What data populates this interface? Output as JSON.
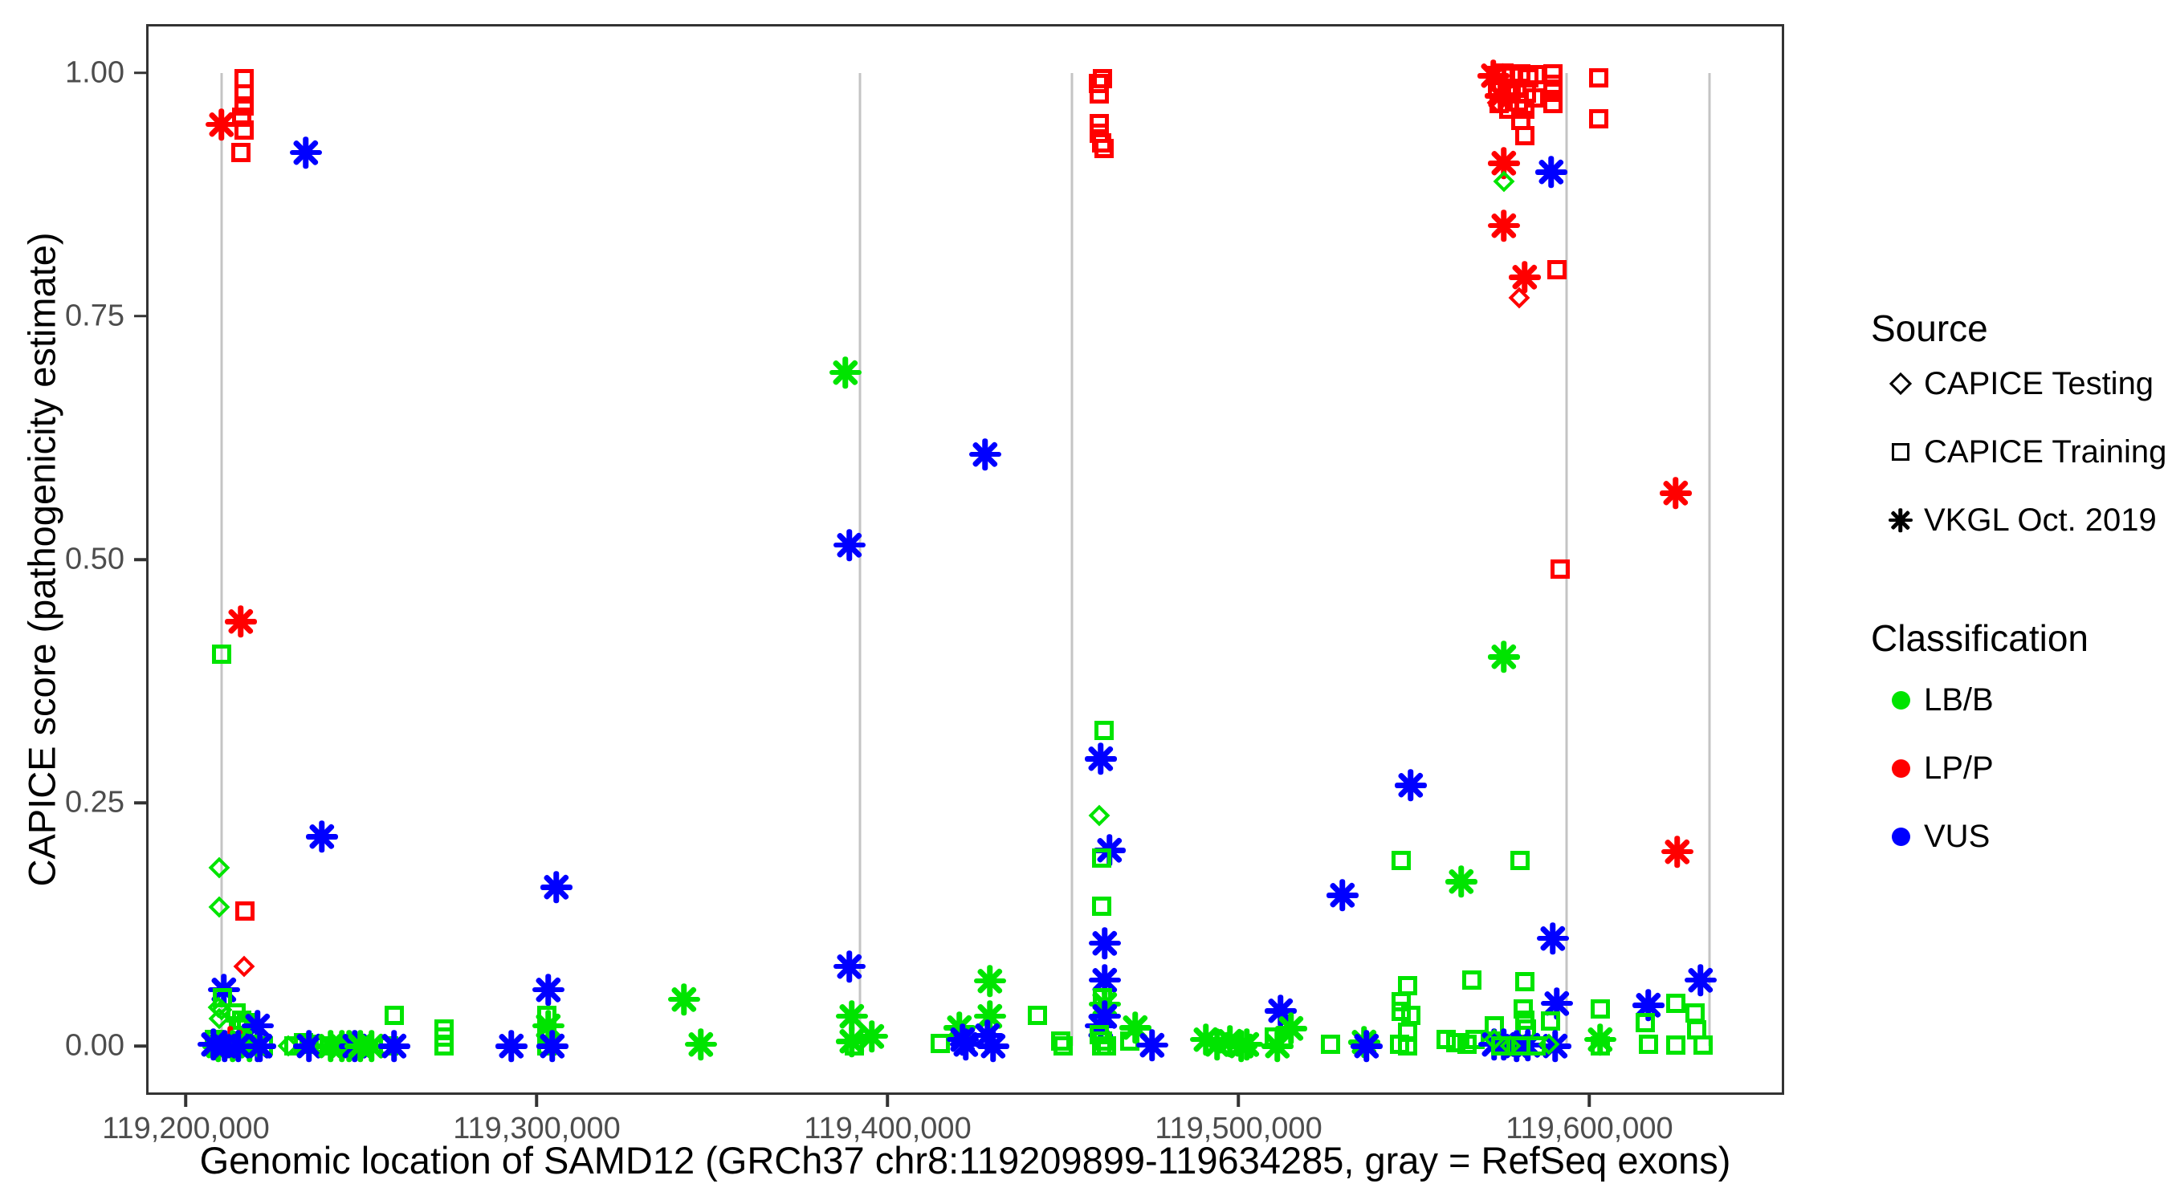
{
  "page": {
    "background": "#FFFFFF"
  },
  "legend": {
    "source": {
      "title": "Source",
      "items": [
        {
          "label": "CAPICE Testing",
          "shape": "diamond"
        },
        {
          "label": "CAPICE Training",
          "shape": "square"
        },
        {
          "label": "VKGL Oct. 2019",
          "shape": "asterisk"
        }
      ]
    },
    "classification": {
      "title": "Classification",
      "items": [
        {
          "label": "LB/B",
          "color": "#00E400"
        },
        {
          "label": "LP/P",
          "color": "#FF0000"
        },
        {
          "label": "VUS",
          "color": "#0000FF"
        }
      ]
    }
  },
  "chart_data": {
    "type": "scatter",
    "title": "",
    "xlabel": "Genomic location of SAMD12 (GRCh37 chr8:119209899-119634285, gray = RefSeq exons)",
    "ylabel": "CAPICE score (pathogenicity estimate)",
    "xlim": [
      119188680,
      119655504
    ],
    "ylim": [
      -0.05,
      1.05
    ],
    "grid": false,
    "legend_position": "right",
    "x_ticks": [
      {
        "label": "119,200,000",
        "value": 119200000
      },
      {
        "label": "119,300,000",
        "value": 119300000
      },
      {
        "label": "119,400,000",
        "value": 119400000
      },
      {
        "label": "119,500,000",
        "value": 119500000
      },
      {
        "label": "119,600,000",
        "value": 119600000
      }
    ],
    "y_ticks": [
      {
        "label": "0.00",
        "value": 0.0
      },
      {
        "label": "0.25",
        "value": 0.25
      },
      {
        "label": "0.50",
        "value": 0.5
      },
      {
        "label": "0.75",
        "value": 0.75
      },
      {
        "label": "1.00",
        "value": 1.0
      }
    ],
    "exon_lines_x": [
      119210300,
      119392200,
      119452600,
      119593400,
      119634300
    ],
    "exon_line_color": "#C4C4C4",
    "panel_border_color": "#333333",
    "tick_text_color": "#4D4D4D",
    "colors": {
      "LB/B": "#00E400",
      "LP/P": "#FF0000",
      "VUS": "#0000FF"
    },
    "class_codes": {
      "g": "LB/B",
      "r": "LP/P",
      "b": "VUS"
    },
    "source_codes": {
      "d": "CAPICE Testing",
      "s": "CAPICE Training",
      "a": "VKGL Oct. 2019"
    },
    "shape_by_source": {
      "CAPICE Testing": "diamond",
      "CAPICE Training": "square",
      "VKGL Oct. 2019": "asterisk"
    },
    "points": [
      [
        119210300,
        0.947,
        "r",
        "a"
      ],
      [
        119216500,
        0.994,
        "r",
        "s"
      ],
      [
        119216500,
        0.978,
        "r",
        "s"
      ],
      [
        119216700,
        0.966,
        "r",
        "s"
      ],
      [
        119216000,
        0.954,
        "r",
        "s"
      ],
      [
        119216500,
        0.941,
        "r",
        "s"
      ],
      [
        119215600,
        0.918,
        "r",
        "s"
      ],
      [
        119234300,
        0.918,
        "b",
        "a"
      ],
      [
        119215600,
        0.436,
        "r",
        "a"
      ],
      [
        119210100,
        0.403,
        "g",
        "s"
      ],
      [
        119238700,
        0.215,
        "b",
        "a"
      ],
      [
        119209600,
        0.183,
        "g",
        "d"
      ],
      [
        119209600,
        0.143,
        "g",
        "d"
      ],
      [
        119216900,
        0.139,
        "r",
        "s"
      ],
      [
        119216700,
        0.082,
        "r",
        "d"
      ],
      [
        119210800,
        0.058,
        "b",
        "a"
      ],
      [
        119210500,
        0.05,
        "g",
        "s"
      ],
      [
        119209200,
        0.04,
        "g",
        "d"
      ],
      [
        119210100,
        0.037,
        "g",
        "d"
      ],
      [
        119209600,
        0.028,
        "g",
        "d"
      ],
      [
        119214400,
        0.034,
        "g",
        "s"
      ],
      [
        119216000,
        0.027,
        "g",
        "s"
      ],
      [
        119215100,
        0.021,
        "g",
        "s"
      ],
      [
        119217200,
        0.024,
        "g",
        "s"
      ],
      [
        119220400,
        0.021,
        "b",
        "a"
      ],
      [
        119220400,
        0.0,
        "b",
        "a"
      ],
      [
        119212600,
        0.004,
        "r",
        "a"
      ],
      [
        119208200,
        0.007,
        "g",
        "s"
      ],
      [
        119210100,
        0.002,
        "g",
        "s"
      ],
      [
        119211900,
        0.0,
        "g",
        "s"
      ],
      [
        119213700,
        0.0,
        "g",
        "s"
      ],
      [
        119215600,
        0.0,
        "g",
        "s"
      ],
      [
        119217400,
        0.002,
        "g",
        "s"
      ],
      [
        119219200,
        0.0,
        "g",
        "s"
      ],
      [
        119222000,
        0.0,
        "g",
        "s"
      ],
      [
        119208700,
        0.0,
        "g",
        "d"
      ],
      [
        119211400,
        0.002,
        "g",
        "d"
      ],
      [
        119209200,
        0.0,
        "g",
        "a"
      ],
      [
        119213300,
        0.0,
        "g",
        "a"
      ],
      [
        119218300,
        0.0,
        "g",
        "a"
      ],
      [
        119208000,
        0.002,
        "b",
        "a"
      ],
      [
        119211000,
        0.0,
        "b",
        "a"
      ],
      [
        119214900,
        0.0,
        "b",
        "a"
      ],
      [
        119221100,
        0.0,
        "b",
        "a"
      ],
      [
        119229100,
        0.0,
        "g",
        "d"
      ],
      [
        119230700,
        0.0,
        "g",
        "s"
      ],
      [
        119233600,
        0.004,
        "g",
        "s"
      ],
      [
        119236600,
        0.002,
        "g",
        "s"
      ],
      [
        119239400,
        0.0,
        "g",
        "s"
      ],
      [
        119235200,
        0.0,
        "b",
        "a"
      ],
      [
        119241400,
        0.0,
        "g",
        "a"
      ],
      [
        119244600,
        0.0,
        "g",
        "a"
      ],
      [
        119246500,
        0.0,
        "g",
        "a"
      ],
      [
        119248100,
        0.0,
        "b",
        "a"
      ],
      [
        119249700,
        0.0,
        "g",
        "a"
      ],
      [
        119252900,
        0.0,
        "g",
        "a"
      ],
      [
        119259500,
        0.032,
        "g",
        "s"
      ],
      [
        119257900,
        0.0,
        "g",
        "s"
      ],
      [
        119259500,
        0.0,
        "b",
        "a"
      ],
      [
        119273500,
        0.018,
        "g",
        "s"
      ],
      [
        119273500,
        0.009,
        "g",
        "s"
      ],
      [
        119273500,
        0.0,
        "g",
        "s"
      ],
      [
        119292900,
        0.0,
        "b",
        "a"
      ],
      [
        119305700,
        0.163,
        "b",
        "a"
      ],
      [
        119303400,
        0.058,
        "b",
        "a"
      ],
      [
        119302800,
        0.032,
        "g",
        "s"
      ],
      [
        119303400,
        0.021,
        "g",
        "a"
      ],
      [
        119302800,
        0.012,
        "g",
        "s"
      ],
      [
        119302800,
        0.0,
        "g",
        "s"
      ],
      [
        119304400,
        0.0,
        "b",
        "a"
      ],
      [
        119341900,
        0.048,
        "g",
        "a"
      ],
      [
        119346700,
        0.002,
        "g",
        "a"
      ],
      [
        119387900,
        0.692,
        "g",
        "a"
      ],
      [
        119389200,
        0.515,
        "b",
        "a"
      ],
      [
        119389200,
        0.082,
        "b",
        "a"
      ],
      [
        119389900,
        0.031,
        "g",
        "a"
      ],
      [
        119389900,
        0.005,
        "g",
        "a"
      ],
      [
        119390400,
        0.0,
        "g",
        "s"
      ],
      [
        119395600,
        0.01,
        "g",
        "a"
      ],
      [
        119427900,
        0.608,
        "b",
        "a"
      ],
      [
        119414900,
        0.003,
        "g",
        "s"
      ],
      [
        119420400,
        0.019,
        "g",
        "a"
      ],
      [
        119421300,
        0.007,
        "b",
        "a"
      ],
      [
        119422400,
        0.002,
        "b",
        "a"
      ],
      [
        119429300,
        0.067,
        "g",
        "a"
      ],
      [
        119429300,
        0.031,
        "g",
        "a"
      ],
      [
        119428400,
        0.011,
        "b",
        "a"
      ],
      [
        119430000,
        0.0,
        "b",
        "a"
      ],
      [
        119442800,
        0.032,
        "g",
        "s"
      ],
      [
        119450100,
        0.0,
        "g",
        "s"
      ],
      [
        119461300,
        0.994,
        "r",
        "s"
      ],
      [
        119460000,
        0.989,
        "r",
        "s"
      ],
      [
        119460400,
        0.978,
        "r",
        "s"
      ],
      [
        119460400,
        0.948,
        "r",
        "s"
      ],
      [
        119460400,
        0.938,
        "r",
        "s"
      ],
      [
        119460900,
        0.928,
        "r",
        "s"
      ],
      [
        119461600,
        0.922,
        "r",
        "s"
      ],
      [
        119461600,
        0.324,
        "g",
        "s"
      ],
      [
        119460700,
        0.295,
        "b",
        "a"
      ],
      [
        119460400,
        0.237,
        "g",
        "d"
      ],
      [
        119463200,
        0.201,
        "b",
        "a"
      ],
      [
        119460900,
        0.193,
        "g",
        "s"
      ],
      [
        119460900,
        0.144,
        "g",
        "s"
      ],
      [
        119462000,
        0.106,
        "b",
        "a"
      ],
      [
        119462000,
        0.068,
        "b",
        "a"
      ],
      [
        119461300,
        0.05,
        "g",
        "s"
      ],
      [
        119462000,
        0.043,
        "g",
        "a"
      ],
      [
        119462000,
        0.031,
        "b",
        "a"
      ],
      [
        119460700,
        0.021,
        "b",
        "a"
      ],
      [
        119460200,
        0.012,
        "g",
        "s"
      ],
      [
        119461300,
        0.005,
        "g",
        "s"
      ],
      [
        119460900,
        0.0,
        "g",
        "s"
      ],
      [
        119462300,
        0.0,
        "g",
        "s"
      ],
      [
        119449400,
        0.005,
        "g",
        "s"
      ],
      [
        119470500,
        0.019,
        "g",
        "a"
      ],
      [
        119468900,
        0.005,
        "g",
        "s"
      ],
      [
        119475500,
        0.001,
        "b",
        "a"
      ],
      [
        119490800,
        0.007,
        "g",
        "a"
      ],
      [
        119494000,
        0.002,
        "g",
        "a"
      ],
      [
        119497700,
        0.005,
        "g",
        "a"
      ],
      [
        119500900,
        0.0,
        "g",
        "a"
      ],
      [
        119502500,
        0.002,
        "g",
        "a"
      ],
      [
        119512100,
        0.036,
        "b",
        "a"
      ],
      [
        119514900,
        0.018,
        "g",
        "a"
      ],
      [
        119510100,
        0.009,
        "g",
        "s"
      ],
      [
        119511200,
        0.0,
        "g",
        "a"
      ],
      [
        119526300,
        0.002,
        "g",
        "s"
      ],
      [
        119535900,
        0.004,
        "g",
        "a"
      ],
      [
        119536400,
        0.0,
        "b",
        "a"
      ],
      [
        119529700,
        0.155,
        "b",
        "a"
      ],
      [
        119549000,
        0.268,
        "b",
        "a"
      ],
      [
        119546400,
        0.191,
        "g",
        "s"
      ],
      [
        119563400,
        0.169,
        "g",
        "a"
      ],
      [
        119548200,
        0.062,
        "g",
        "s"
      ],
      [
        119546400,
        0.046,
        "g",
        "s"
      ],
      [
        119546400,
        0.036,
        "g",
        "s"
      ],
      [
        119549000,
        0.032,
        "g",
        "s"
      ],
      [
        119548200,
        0.014,
        "g",
        "s"
      ],
      [
        119546000,
        0.002,
        "g",
        "s"
      ],
      [
        119548200,
        0.0,
        "g",
        "s"
      ],
      [
        119566600,
        0.068,
        "g",
        "s"
      ],
      [
        119559100,
        0.007,
        "g",
        "s"
      ],
      [
        119562000,
        0.004,
        "g",
        "s"
      ],
      [
        119565000,
        0.002,
        "g",
        "s"
      ],
      [
        119567500,
        0.007,
        "g",
        "s"
      ],
      [
        119573000,
        0.021,
        "g",
        "s"
      ],
      [
        119573000,
        0.002,
        "b",
        "a"
      ],
      [
        119573400,
        0.997,
        "r",
        "s"
      ],
      [
        119575700,
        1.0,
        "r",
        "s"
      ],
      [
        119578000,
        0.996,
        "r",
        "s"
      ],
      [
        119580500,
        0.999,
        "r",
        "s"
      ],
      [
        119582800,
        0.995,
        "r",
        "s"
      ],
      [
        119584900,
        0.998,
        "r",
        "s"
      ],
      [
        119573900,
        0.983,
        "r",
        "s"
      ],
      [
        119576600,
        0.978,
        "r",
        "s"
      ],
      [
        119579400,
        0.984,
        "r",
        "s"
      ],
      [
        119582100,
        0.979,
        "r",
        "s"
      ],
      [
        119584400,
        0.974,
        "r",
        "s"
      ],
      [
        119574300,
        0.968,
        "r",
        "s"
      ],
      [
        119577100,
        0.963,
        "r",
        "s"
      ],
      [
        119579800,
        0.97,
        "r",
        "s"
      ],
      [
        119572700,
        0.997,
        "r",
        "a"
      ],
      [
        119574800,
        0.976,
        "r",
        "a"
      ],
      [
        119573900,
        0.969,
        "r",
        "d"
      ],
      [
        119580500,
        0.951,
        "r",
        "s"
      ],
      [
        119581700,
        0.963,
        "r",
        "s"
      ],
      [
        119581700,
        0.935,
        "r",
        "s"
      ],
      [
        119589700,
        0.999,
        "r",
        "s"
      ],
      [
        119589700,
        0.988,
        "r",
        "s"
      ],
      [
        119589700,
        0.98,
        "r",
        "s"
      ],
      [
        119589700,
        0.968,
        "r",
        "s"
      ],
      [
        119602700,
        0.995,
        "r",
        "s"
      ],
      [
        119602700,
        0.953,
        "r",
        "s"
      ],
      [
        119575700,
        0.907,
        "r",
        "a"
      ],
      [
        119575700,
        0.888,
        "g",
        "d"
      ],
      [
        119589200,
        0.898,
        "b",
        "a"
      ],
      [
        119575700,
        0.843,
        "r",
        "a"
      ],
      [
        119581700,
        0.79,
        "r",
        "a"
      ],
      [
        119590800,
        0.798,
        "r",
        "s"
      ],
      [
        119580100,
        0.769,
        "r",
        "d"
      ],
      [
        119591700,
        0.49,
        "r",
        "s"
      ],
      [
        119575700,
        0.4,
        "g",
        "a"
      ],
      [
        119580300,
        0.191,
        "g",
        "s"
      ],
      [
        119624700,
        0.568,
        "r",
        "a"
      ],
      [
        119625100,
        0.2,
        "r",
        "a"
      ],
      [
        119589500,
        0.111,
        "b",
        "a"
      ],
      [
        119631600,
        0.068,
        "b",
        "a"
      ],
      [
        119581700,
        0.066,
        "g",
        "s"
      ],
      [
        119590800,
        0.044,
        "b",
        "a"
      ],
      [
        119616900,
        0.042,
        "b",
        "a"
      ],
      [
        119624700,
        0.044,
        "g",
        "s"
      ],
      [
        119581200,
        0.038,
        "g",
        "s"
      ],
      [
        119581700,
        0.027,
        "g",
        "s"
      ],
      [
        119582100,
        0.018,
        "g",
        "s"
      ],
      [
        119589000,
        0.026,
        "g",
        "s"
      ],
      [
        119603200,
        0.038,
        "g",
        "s"
      ],
      [
        119616000,
        0.024,
        "g",
        "s"
      ],
      [
        119630200,
        0.034,
        "g",
        "s"
      ],
      [
        119630600,
        0.017,
        "g",
        "s"
      ],
      [
        119575700,
        0.002,
        "b",
        "a"
      ],
      [
        119579400,
        0.0,
        "b",
        "a"
      ],
      [
        119582600,
        0.001,
        "b",
        "a"
      ],
      [
        119590400,
        0.0,
        "b",
        "a"
      ],
      [
        119573000,
        0.007,
        "g",
        "d"
      ],
      [
        119577500,
        0.0,
        "g",
        "d"
      ],
      [
        119588500,
        0.002,
        "g",
        "d"
      ],
      [
        119574800,
        0.0,
        "g",
        "s"
      ],
      [
        119580500,
        0.0,
        "g",
        "s"
      ],
      [
        119584900,
        0.0,
        "g",
        "s"
      ],
      [
        119603200,
        0.0,
        "g",
        "s"
      ],
      [
        119603200,
        0.007,
        "g",
        "a"
      ],
      [
        119616900,
        0.002,
        "g",
        "s"
      ],
      [
        119624700,
        0.001,
        "g",
        "s"
      ],
      [
        119632500,
        0.001,
        "g",
        "s"
      ]
    ]
  }
}
